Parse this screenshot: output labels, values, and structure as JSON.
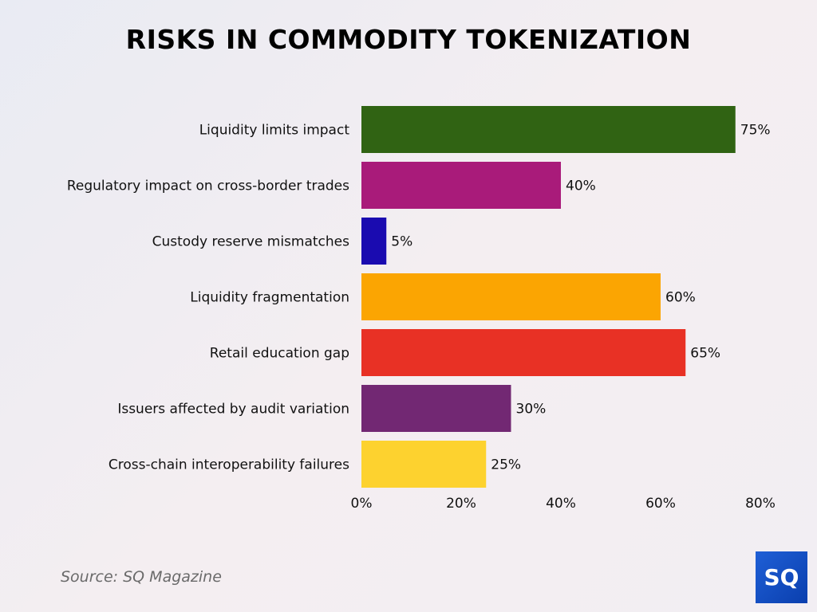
{
  "chart_data": {
    "type": "bar",
    "orientation": "horizontal",
    "title": "RISKS IN COMMODITY TOKENIZATION",
    "categories": [
      "Liquidity limits impact",
      "Regulatory impact on cross-border trades",
      "Custody reserve mismatches",
      "Liquidity fragmentation",
      "Retail education gap",
      "Issuers affected by audit variation",
      "Cross-chain interoperability failures"
    ],
    "values": [
      75,
      40,
      5,
      60,
      65,
      30,
      25
    ],
    "value_labels": [
      "75%",
      "40%",
      "5%",
      "60%",
      "65%",
      "30%",
      "25%"
    ],
    "colors": [
      "#306313",
      "#a91b7a",
      "#1a0bb0",
      "#fba502",
      "#e83125",
      "#722873",
      "#fdd22f"
    ],
    "xlim": [
      0,
      80
    ],
    "xticks": [
      0,
      20,
      40,
      60,
      80
    ],
    "xtick_labels": [
      "0%",
      "20%",
      "40%",
      "60%",
      "80%"
    ],
    "grid": false,
    "xlabel": "",
    "ylabel": ""
  },
  "source": "Source: SQ Magazine",
  "logo": {
    "text": "SQ",
    "color": "#1a52c8"
  }
}
